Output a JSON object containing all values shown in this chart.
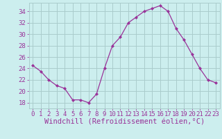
{
  "x": [
    0,
    1,
    2,
    3,
    4,
    5,
    6,
    7,
    8,
    9,
    10,
    11,
    12,
    13,
    14,
    15,
    16,
    17,
    18,
    19,
    20,
    21,
    22,
    23
  ],
  "y": [
    24.5,
    23.5,
    22,
    21,
    20.5,
    18.5,
    18.5,
    18,
    19.5,
    24,
    28,
    29.5,
    32,
    33,
    34,
    34.5,
    35,
    34,
    31,
    29,
    26.5,
    24,
    22,
    21.5
  ],
  "line_color": "#993399",
  "marker": "D",
  "marker_size": 2,
  "bg_color": "#cceeee",
  "grid_color": "#aacccc",
  "xlabel": "Windchill (Refroidissement éolien,°C)",
  "xlabel_color": "#993399",
  "tick_color": "#993399",
  "xlim": [
    -0.5,
    23.5
  ],
  "ylim": [
    17,
    35.5
  ],
  "yticks": [
    18,
    20,
    22,
    24,
    26,
    28,
    30,
    32,
    34
  ],
  "xticks": [
    0,
    1,
    2,
    3,
    4,
    5,
    6,
    7,
    8,
    9,
    10,
    11,
    12,
    13,
    14,
    15,
    16,
    17,
    18,
    19,
    20,
    21,
    22,
    23
  ],
  "tick_fontsize": 6.5,
  "xlabel_fontsize": 7.5
}
